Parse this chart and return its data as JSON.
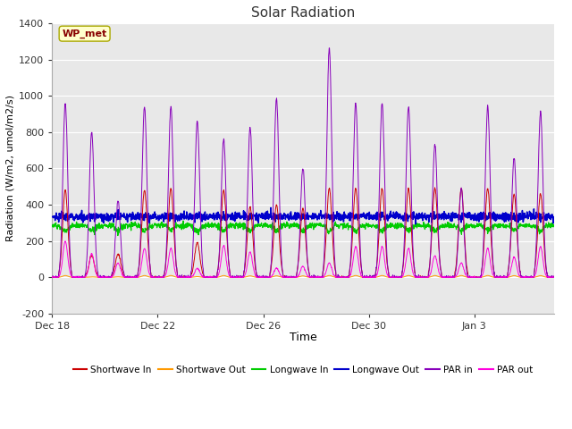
{
  "title": "Solar Radiation",
  "xlabel": "Time",
  "ylabel": "Radiation (W/m2, umol/m2/s)",
  "ylim": [
    -200,
    1400
  ],
  "yticks": [
    -200,
    0,
    200,
    400,
    600,
    800,
    1000,
    1200,
    1400
  ],
  "fig_bg_color": "#ffffff",
  "plot_bg_color": "#e8e8e8",
  "legend_entries": [
    "Shortwave In",
    "Shortwave Out",
    "Longwave In",
    "Longwave Out",
    "PAR in",
    "PAR out"
  ],
  "legend_colors": [
    "#cc0000",
    "#ff9900",
    "#00cc00",
    "#0000cc",
    "#8800bb",
    "#ff00dd"
  ],
  "annotation_text": "WP_met",
  "annotation_box_color": "#ffffcc",
  "annotation_text_color": "#880000",
  "xticklabels": [
    "Dec 18",
    "Dec 22",
    "Dec 26",
    "Dec 30",
    "Jan 3"
  ],
  "xtick_positions": [
    0,
    4,
    8,
    12,
    16
  ],
  "n_days": 19,
  "n_points_per_day": 96,
  "day_peaks_sw": [
    480,
    120,
    130,
    480,
    490,
    190,
    480,
    390,
    400,
    380,
    490,
    490,
    490,
    490,
    490,
    490,
    490,
    460,
    460
  ],
  "day_peaks_par": [
    960,
    800,
    420,
    940,
    940,
    860,
    760,
    825,
    985,
    600,
    1260,
    960,
    960,
    940,
    730,
    490,
    940,
    655,
    910
  ],
  "day_peaks_par_out": [
    200,
    130,
    80,
    160,
    160,
    50,
    175,
    140,
    50,
    60,
    80,
    170,
    170,
    160,
    120,
    80,
    160,
    110,
    170
  ],
  "lw_in_base": 285,
  "lw_out_base": 335,
  "grid_color": "#ffffff",
  "seed": 42
}
